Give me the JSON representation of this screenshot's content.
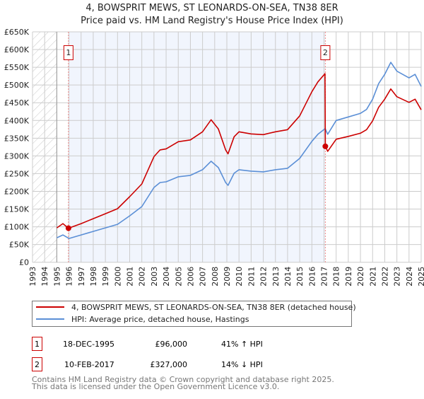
{
  "chart_data": {
    "type": "line",
    "title": "4, BOWSPRIT MEWS, ST LEONARDS-ON-SEA, TN38 8ER",
    "subtitle": "Price paid vs. HM Land Registry's House Price Index (HPI)",
    "xlabel": "",
    "ylabel": "",
    "xlim": [
      1993,
      2025
    ],
    "ylim": [
      0,
      650000
    ],
    "grid": true,
    "x_ticks": [
      "1993",
      "1994",
      "1995",
      "1996",
      "1997",
      "1998",
      "1999",
      "2000",
      "2001",
      "2002",
      "2003",
      "2004",
      "2005",
      "2006",
      "2007",
      "2008",
      "2009",
      "2010",
      "2011",
      "2012",
      "2013",
      "2014",
      "2015",
      "2016",
      "2017",
      "2018",
      "2019",
      "2020",
      "2021",
      "2022",
      "2023",
      "2024",
      "2025"
    ],
    "y_ticks": [
      {
        "value": 0,
        "label": "£0"
      },
      {
        "value": 50000,
        "label": "£50K"
      },
      {
        "value": 100000,
        "label": "£100K"
      },
      {
        "value": 150000,
        "label": "£150K"
      },
      {
        "value": 200000,
        "label": "£200K"
      },
      {
        "value": 250000,
        "label": "£250K"
      },
      {
        "value": 300000,
        "label": "£300K"
      },
      {
        "value": 350000,
        "label": "£350K"
      },
      {
        "value": 400000,
        "label": "£400K"
      },
      {
        "value": 450000,
        "label": "£450K"
      },
      {
        "value": 500000,
        "label": "£500K"
      },
      {
        "value": 550000,
        "label": "£550K"
      },
      {
        "value": 600000,
        "label": "£600K"
      },
      {
        "value": 650000,
        "label": "£650K"
      }
    ],
    "hatched_range": [
      1993,
      1995
    ],
    "shaded_range": [
      1995.96,
      2017.11
    ],
    "series": [
      {
        "name": "4, BOWSPRIT MEWS, ST LEONARDS-ON-SEA, TN38 8ER (detached house)",
        "color": "#cc0000",
        "x": [
          1995.0,
          1995.5,
          1995.96,
          1997,
          1998,
          1999,
          2000,
          2001,
          2002,
          2003,
          2003.5,
          2004,
          2005,
          2006,
          2007,
          2007.7,
          2008.3,
          2008.9,
          2009.1,
          2009.6,
          2010,
          2011,
          2012,
          2013,
          2014,
          2015,
          2016,
          2016.5,
          2017.08,
          2017.11,
          2017.3,
          2018,
          2019,
          2020,
          2020.5,
          2021,
          2021.5,
          2022,
          2022.5,
          2023,
          2024,
          2024.5,
          2025
        ],
        "y": [
          97000,
          109000,
          96000,
          109000,
          123000,
          137000,
          151000,
          185000,
          221000,
          298000,
          317000,
          320000,
          340000,
          345000,
          368000,
          402000,
          376000,
          317000,
          306000,
          354000,
          368000,
          362000,
          360000,
          368000,
          374000,
          413000,
          481000,
          509000,
          532000,
          327000,
          313000,
          347000,
          355000,
          364000,
          374000,
          399000,
          437000,
          460000,
          489000,
          467000,
          451000,
          460000,
          430000
        ]
      },
      {
        "name": "HPI: Average price, detached house, Hastings",
        "color": "#5b8fd6",
        "x": [
          1995.0,
          1995.5,
          1996.0,
          1997,
          1998,
          1999,
          2000,
          2001,
          2002,
          2003,
          2003.5,
          2004,
          2005,
          2006,
          2007,
          2007.7,
          2008.3,
          2008.9,
          2009.1,
          2009.6,
          2010,
          2011,
          2012,
          2013,
          2014,
          2015,
          2016,
          2016.5,
          2017.1,
          2017.3,
          2018,
          2019,
          2020,
          2020.5,
          2021,
          2021.5,
          2022,
          2022.5,
          2023,
          2024,
          2024.5,
          2025
        ],
        "y": [
          69000,
          77000,
          67000,
          77000,
          87000,
          97000,
          107000,
          131000,
          157000,
          211000,
          225000,
          227000,
          241000,
          245000,
          261000,
          285000,
          267000,
          225000,
          217000,
          251000,
          261000,
          257000,
          255000,
          261000,
          265000,
          293000,
          341000,
          361000,
          377000,
          361000,
          400000,
          410000,
          420000,
          431000,
          460000,
          504000,
          530000,
          564000,
          539000,
          520000,
          530000,
          496000
        ]
      }
    ],
    "annotations": [
      {
        "label": "1",
        "x": 1995.96,
        "y": 96000
      },
      {
        "label": "2",
        "x": 2017.11,
        "y": 327000
      }
    ]
  },
  "legend": {
    "items": [
      {
        "label": "4, BOWSPRIT MEWS, ST LEONARDS-ON-SEA, TN38 8ER (detached house)",
        "color": "#cc0000"
      },
      {
        "label": "HPI: Average price, detached house, Hastings",
        "color": "#5b8fd6"
      }
    ]
  },
  "transactions": [
    {
      "num": "1",
      "date": "18-DEC-1995",
      "price": "£96,000",
      "hpi": "41% ↑ HPI"
    },
    {
      "num": "2",
      "date": "10-FEB-2017",
      "price": "£327,000",
      "hpi": "14% ↓ HPI"
    }
  ],
  "footer": {
    "line1": "Contains HM Land Registry data © Crown copyright and database right 2025.",
    "line2": "This data is licensed under the Open Government Licence v3.0."
  }
}
